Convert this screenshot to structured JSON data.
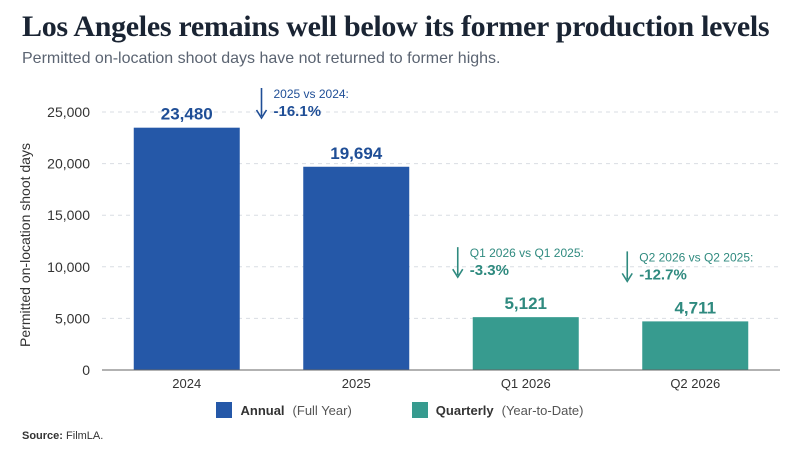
{
  "title": "Los Angeles remains well below its former production levels",
  "subtitle": "Permitted on-location shoot days have not returned to former highs.",
  "source_label": "Source:",
  "source_text": "FilmLA.",
  "colors": {
    "annual": "#2558a8",
    "quarterly": "#379b8f",
    "annual_text": "#1f4e96",
    "quarterly_text": "#2f8a7f"
  },
  "legend": [
    {
      "name": "Annual",
      "desc": "(Full Year)",
      "color": "#2558a8"
    },
    {
      "name": "Quarterly",
      "desc": "(Year-to-Date)",
      "color": "#379b8f"
    }
  ],
  "chart_data": {
    "type": "bar",
    "ylabel": "Permitted on-location shoot days",
    "ylim": [
      0,
      25000
    ],
    "yticks": [
      "0",
      "5,000",
      "10,000",
      "15,000",
      "20,000",
      "25,000"
    ],
    "ytick_values": [
      0,
      5000,
      10000,
      15000,
      20000,
      25000
    ],
    "grid": true,
    "categories": [
      "2024",
      "2025",
      "Q1 2026",
      "Q2 2026"
    ],
    "values": [
      23480,
      19694,
      5121,
      4711
    ],
    "value_labels": [
      "23,480",
      "19,694",
      "5,121",
      "4,711"
    ],
    "groups": [
      "annual",
      "annual",
      "quarterly",
      "quarterly"
    ],
    "annotations": [
      {
        "bar": 1,
        "label": "2025 vs 2024:",
        "value": "-16.1%",
        "group": "annual"
      },
      {
        "bar": 2,
        "label": "Q1 2026 vs Q1 2025:",
        "value": "-3.3%",
        "group": "quarterly"
      },
      {
        "bar": 3,
        "label": "Q2 2026 vs Q2 2025:",
        "value": "-12.7%",
        "group": "quarterly"
      }
    ]
  }
}
